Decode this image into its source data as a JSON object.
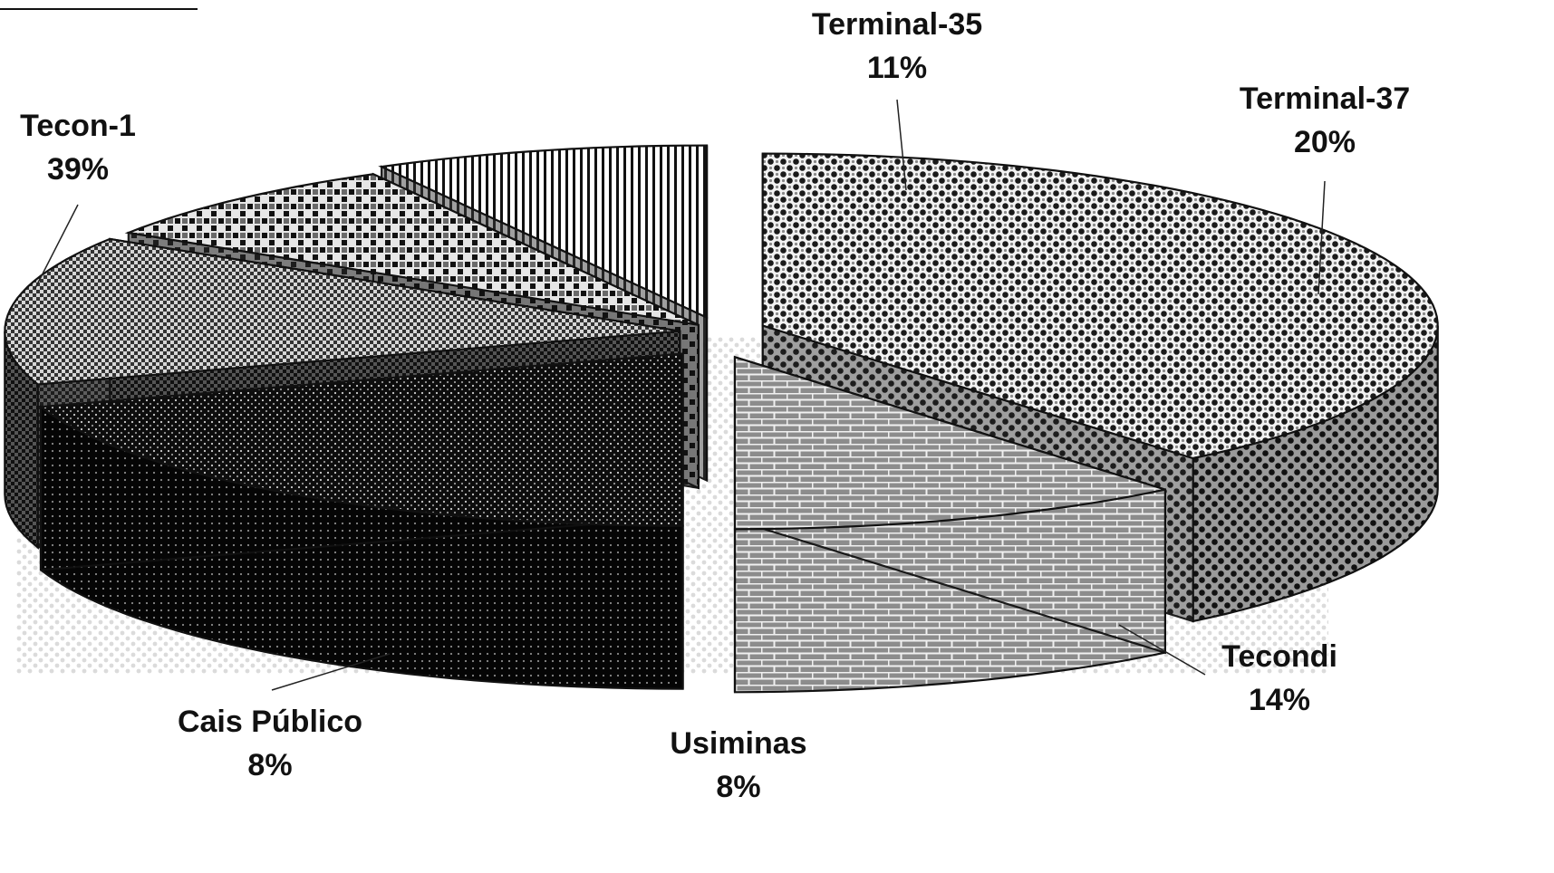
{
  "chart_data": {
    "type": "pie",
    "style": "exploded 3d pie",
    "slices": [
      {
        "label": "Tecon-1",
        "percent_label": "39%",
        "value": 39,
        "pattern": "fine-checker"
      },
      {
        "label": "Terminal-35",
        "percent_label": "11%",
        "value": 11,
        "pattern": "brick"
      },
      {
        "label": "Terminal-37",
        "percent_label": "20%",
        "value": 20,
        "pattern": "dense-dots"
      },
      {
        "label": "Tecondi",
        "percent_label": "14%",
        "value": 14,
        "pattern": "small-checker"
      },
      {
        "label": "Usiminas",
        "percent_label": "8%",
        "value": 8,
        "pattern": "large-checker"
      },
      {
        "label": "Cais Público",
        "percent_label": "8%",
        "value": 8,
        "pattern": "vertical-stripes"
      }
    ]
  }
}
